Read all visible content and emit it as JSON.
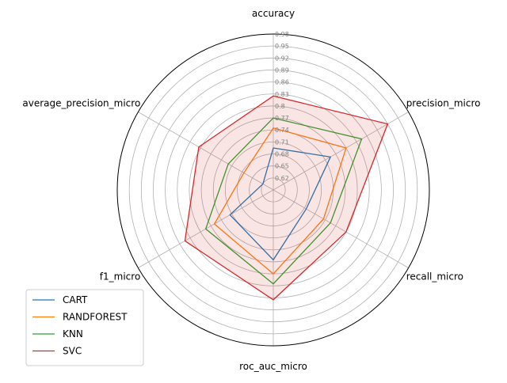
{
  "chart_data": {
    "type": "radar",
    "axes": [
      "accuracy",
      "precision_micro",
      "recall_micro",
      "roc_auc_micro",
      "f1_micro",
      "average_precision_micro"
    ],
    "rlim": [
      0.59,
      0.98
    ],
    "rticks": [
      0.62,
      0.65,
      0.68,
      0.71,
      0.74,
      0.77,
      0.8,
      0.83,
      0.86,
      0.89,
      0.92,
      0.95,
      0.98
    ],
    "rtick_labels": [
      "0.62",
      "0.65",
      "0.68",
      "0.71",
      "0.74",
      "0.77",
      "0.8",
      "0.83",
      "0.86",
      "0.89",
      "0.92",
      "0.95",
      "0.98"
    ],
    "grid": true,
    "legend_position": "lower-left",
    "series": [
      {
        "name": "CART",
        "color": "#1f77b4",
        "values": [
          0.695,
          0.755,
          0.685,
          0.765,
          0.715,
          0.62
        ],
        "filled": false
      },
      {
        "name": "RANDFOREST",
        "color": "#ff7f0e",
        "values": [
          0.745,
          0.8,
          0.735,
          0.8,
          0.76,
          0.675
        ],
        "filled": false
      },
      {
        "name": "KNN",
        "color": "#2ca02c",
        "values": [
          0.77,
          0.845,
          0.755,
          0.825,
          0.785,
          0.72
        ],
        "filled": false
      },
      {
        "name": "SVC",
        "color": "#d62728",
        "values": [
          0.825,
          0.92,
          0.8,
          0.865,
          0.845,
          0.805
        ],
        "filled": true
      }
    ]
  }
}
